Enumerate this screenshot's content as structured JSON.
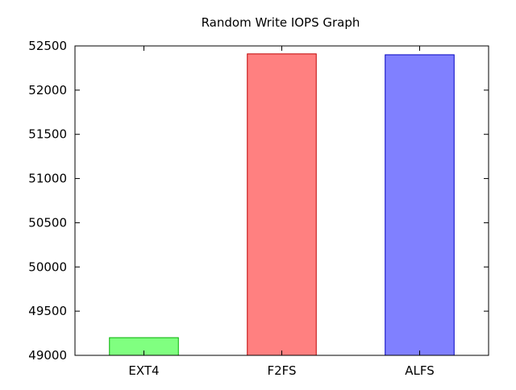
{
  "chart_data": {
    "type": "bar",
    "title": "Random Write IOPS Graph",
    "xlabel": "",
    "ylabel": "",
    "categories": [
      "EXT4",
      "F2FS",
      "ALFS"
    ],
    "values": [
      49200,
      52410,
      52400
    ],
    "ylim": [
      49000,
      52500
    ],
    "yticks": [
      49000,
      49500,
      50000,
      50500,
      51000,
      51500,
      52000,
      52500
    ],
    "ytick_labels": [
      "49000",
      "49500",
      "50000",
      "50500",
      "51000",
      "51500",
      "52000",
      "52500"
    ],
    "grid": false,
    "legend": "none",
    "bar_colors": [
      {
        "fill": "#80ff80",
        "stroke": "#00b000"
      },
      {
        "fill": "#ff8080",
        "stroke": "#c00000"
      },
      {
        "fill": "#8080ff",
        "stroke": "#0000c0"
      }
    ]
  }
}
